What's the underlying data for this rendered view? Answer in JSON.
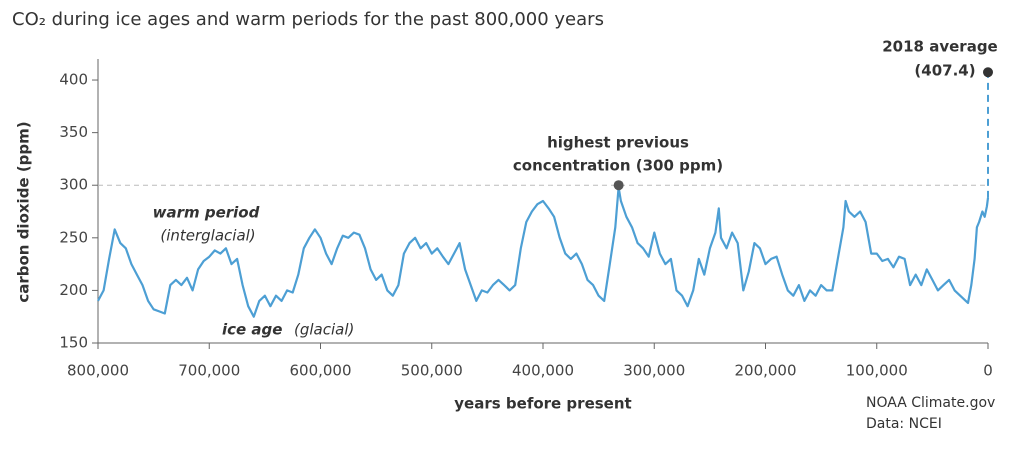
{
  "chart_data": {
    "type": "line",
    "title": "CO₂ during ice ages and warm periods for the past 800,000 years",
    "x_label": "years before present",
    "y_label": "carbon dioxide (ppm)",
    "x": [
      800000,
      795000,
      790000,
      785000,
      780000,
      775000,
      770000,
      765000,
      760000,
      755000,
      750000,
      745000,
      740000,
      735000,
      730000,
      725000,
      720000,
      715000,
      710000,
      705000,
      700000,
      695000,
      690000,
      685000,
      680000,
      675000,
      670000,
      665000,
      660000,
      655000,
      650000,
      645000,
      640000,
      635000,
      630000,
      625000,
      620000,
      615000,
      610000,
      605000,
      600000,
      595000,
      590000,
      585000,
      580000,
      575000,
      570000,
      565000,
      560000,
      555000,
      550000,
      545000,
      540000,
      535000,
      530000,
      525000,
      520000,
      515000,
      510000,
      505000,
      500000,
      495000,
      490000,
      485000,
      480000,
      475000,
      470000,
      465000,
      460000,
      455000,
      450000,
      445000,
      440000,
      435000,
      430000,
      425000,
      420000,
      415000,
      410000,
      405000,
      400000,
      395000,
      390000,
      385000,
      380000,
      375000,
      370000,
      365000,
      360000,
      355000,
      350000,
      345000,
      340000,
      335000,
      332000,
      330000,
      325000,
      320000,
      315000,
      310000,
      305000,
      300000,
      295000,
      290000,
      285000,
      280000,
      275000,
      270000,
      265000,
      260000,
      255000,
      250000,
      245000,
      242000,
      240000,
      235000,
      230000,
      225000,
      220000,
      215000,
      210000,
      205000,
      200000,
      195000,
      190000,
      185000,
      180000,
      175000,
      170000,
      165000,
      160000,
      155000,
      150000,
      145000,
      140000,
      135000,
      130000,
      128000,
      125000,
      120000,
      115000,
      110000,
      105000,
      100000,
      95000,
      90000,
      85000,
      80000,
      75000,
      70000,
      65000,
      60000,
      55000,
      50000,
      45000,
      40000,
      35000,
      30000,
      25000,
      20000,
      18000,
      15000,
      12000,
      10000,
      8000,
      5000,
      3000,
      1000,
      0
    ],
    "values": [
      190,
      200,
      230,
      258,
      245,
      240,
      225,
      215,
      205,
      190,
      182,
      180,
      178,
      205,
      210,
      205,
      212,
      200,
      220,
      228,
      232,
      238,
      235,
      240,
      225,
      230,
      205,
      185,
      175,
      190,
      195,
      185,
      195,
      190,
      200,
      198,
      215,
      240,
      250,
      258,
      250,
      235,
      225,
      240,
      252,
      250,
      255,
      253,
      240,
      220,
      210,
      215,
      200,
      195,
      205,
      235,
      245,
      250,
      240,
      245,
      235,
      240,
      232,
      225,
      235,
      245,
      220,
      205,
      190,
      200,
      198,
      205,
      210,
      205,
      200,
      205,
      240,
      265,
      275,
      282,
      285,
      278,
      270,
      250,
      235,
      230,
      235,
      225,
      210,
      205,
      195,
      190,
      225,
      260,
      298,
      285,
      270,
      260,
      245,
      240,
      232,
      255,
      235,
      225,
      230,
      200,
      195,
      185,
      200,
      230,
      215,
      240,
      255,
      278,
      250,
      240,
      255,
      245,
      200,
      218,
      245,
      240,
      225,
      230,
      232,
      215,
      200,
      195,
      205,
      190,
      200,
      195,
      205,
      200,
      200,
      230,
      260,
      285,
      275,
      270,
      275,
      265,
      235,
      235,
      228,
      230,
      222,
      232,
      230,
      205,
      215,
      205,
      220,
      210,
      200,
      205,
      210,
      200,
      195,
      190,
      188,
      205,
      230,
      260,
      265,
      275,
      270,
      280,
      288
    ],
    "color": "#4d9fd4",
    "xlim": [
      800000,
      0
    ],
    "xticks": [
      {
        "value": 800000,
        "label": "800,000"
      },
      {
        "value": 700000,
        "label": "700,000"
      },
      {
        "value": 600000,
        "label": "600,000"
      },
      {
        "value": 500000,
        "label": "500,000"
      },
      {
        "value": 400000,
        "label": "400,000"
      },
      {
        "value": 300000,
        "label": "300,000"
      },
      {
        "value": 200000,
        "label": "200,000"
      },
      {
        "value": 100000,
        "label": "100,000"
      },
      0
    ],
    "ylim": [
      150,
      420
    ],
    "yticks": [
      150,
      200,
      250,
      300,
      350,
      400
    ],
    "reference_line": {
      "value": 300,
      "color": "#bbbbbb"
    },
    "current": {
      "title": "2018 average",
      "x": 0,
      "value": 407.4,
      "label": "(407.4)",
      "color": "#333333"
    },
    "previous_high": {
      "title": [
        "highest previous",
        "concentration (300 ppm)"
      ],
      "x": 332000,
      "value": 300,
      "color": "#555555"
    },
    "warm_label": {
      "title": "warm period",
      "subtitle": "(interglacial)"
    },
    "glacial_label": {
      "title": "ice age",
      "subtitle": "(glacial)"
    },
    "credit": [
      "NOAA Climate.gov",
      "Data: NCEI"
    ]
  }
}
